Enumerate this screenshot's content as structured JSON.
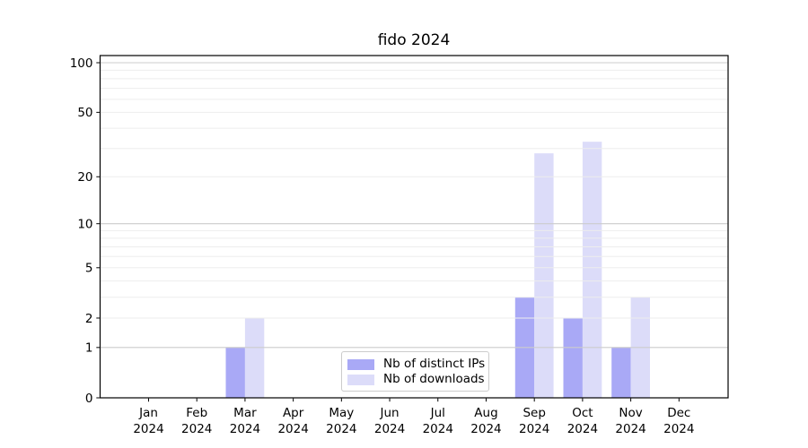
{
  "chart_data": {
    "type": "bar",
    "title": "fido 2024",
    "x_axis": {
      "categories": [
        "Jan",
        "Feb",
        "Mar",
        "Apr",
        "May",
        "Jun",
        "Jul",
        "Aug",
        "Sep",
        "Oct",
        "Nov",
        "Dec"
      ],
      "year_label": "2024"
    },
    "y_axis": {
      "ticks": [
        0,
        1,
        2,
        5,
        10,
        20,
        50,
        100
      ],
      "scale": "log1p",
      "range": [
        0,
        111
      ]
    },
    "grid": {
      "major": [
        1,
        10,
        100
      ],
      "minor": [
        2,
        3,
        4,
        5,
        6,
        7,
        8,
        9,
        20,
        30,
        40,
        50,
        60,
        70,
        80,
        90
      ]
    },
    "series": [
      {
        "name": "Nb of distinct IPs",
        "color": "#a9a9f6",
        "values": [
          0,
          0,
          1,
          0,
          0,
          0,
          0,
          0,
          3,
          2,
          1,
          0
        ]
      },
      {
        "name": "Nb of downloads",
        "color": "#dcdcf9",
        "values": [
          0,
          0,
          2,
          0,
          0,
          0,
          0,
          0,
          28,
          33,
          3,
          0
        ]
      }
    ],
    "legend": {
      "position": "lower center"
    },
    "colors": {
      "major_grid": "#cccccc",
      "minor_grid": "#ededed",
      "spine": "#000000",
      "tick": "#000000",
      "text": "#000000"
    }
  }
}
